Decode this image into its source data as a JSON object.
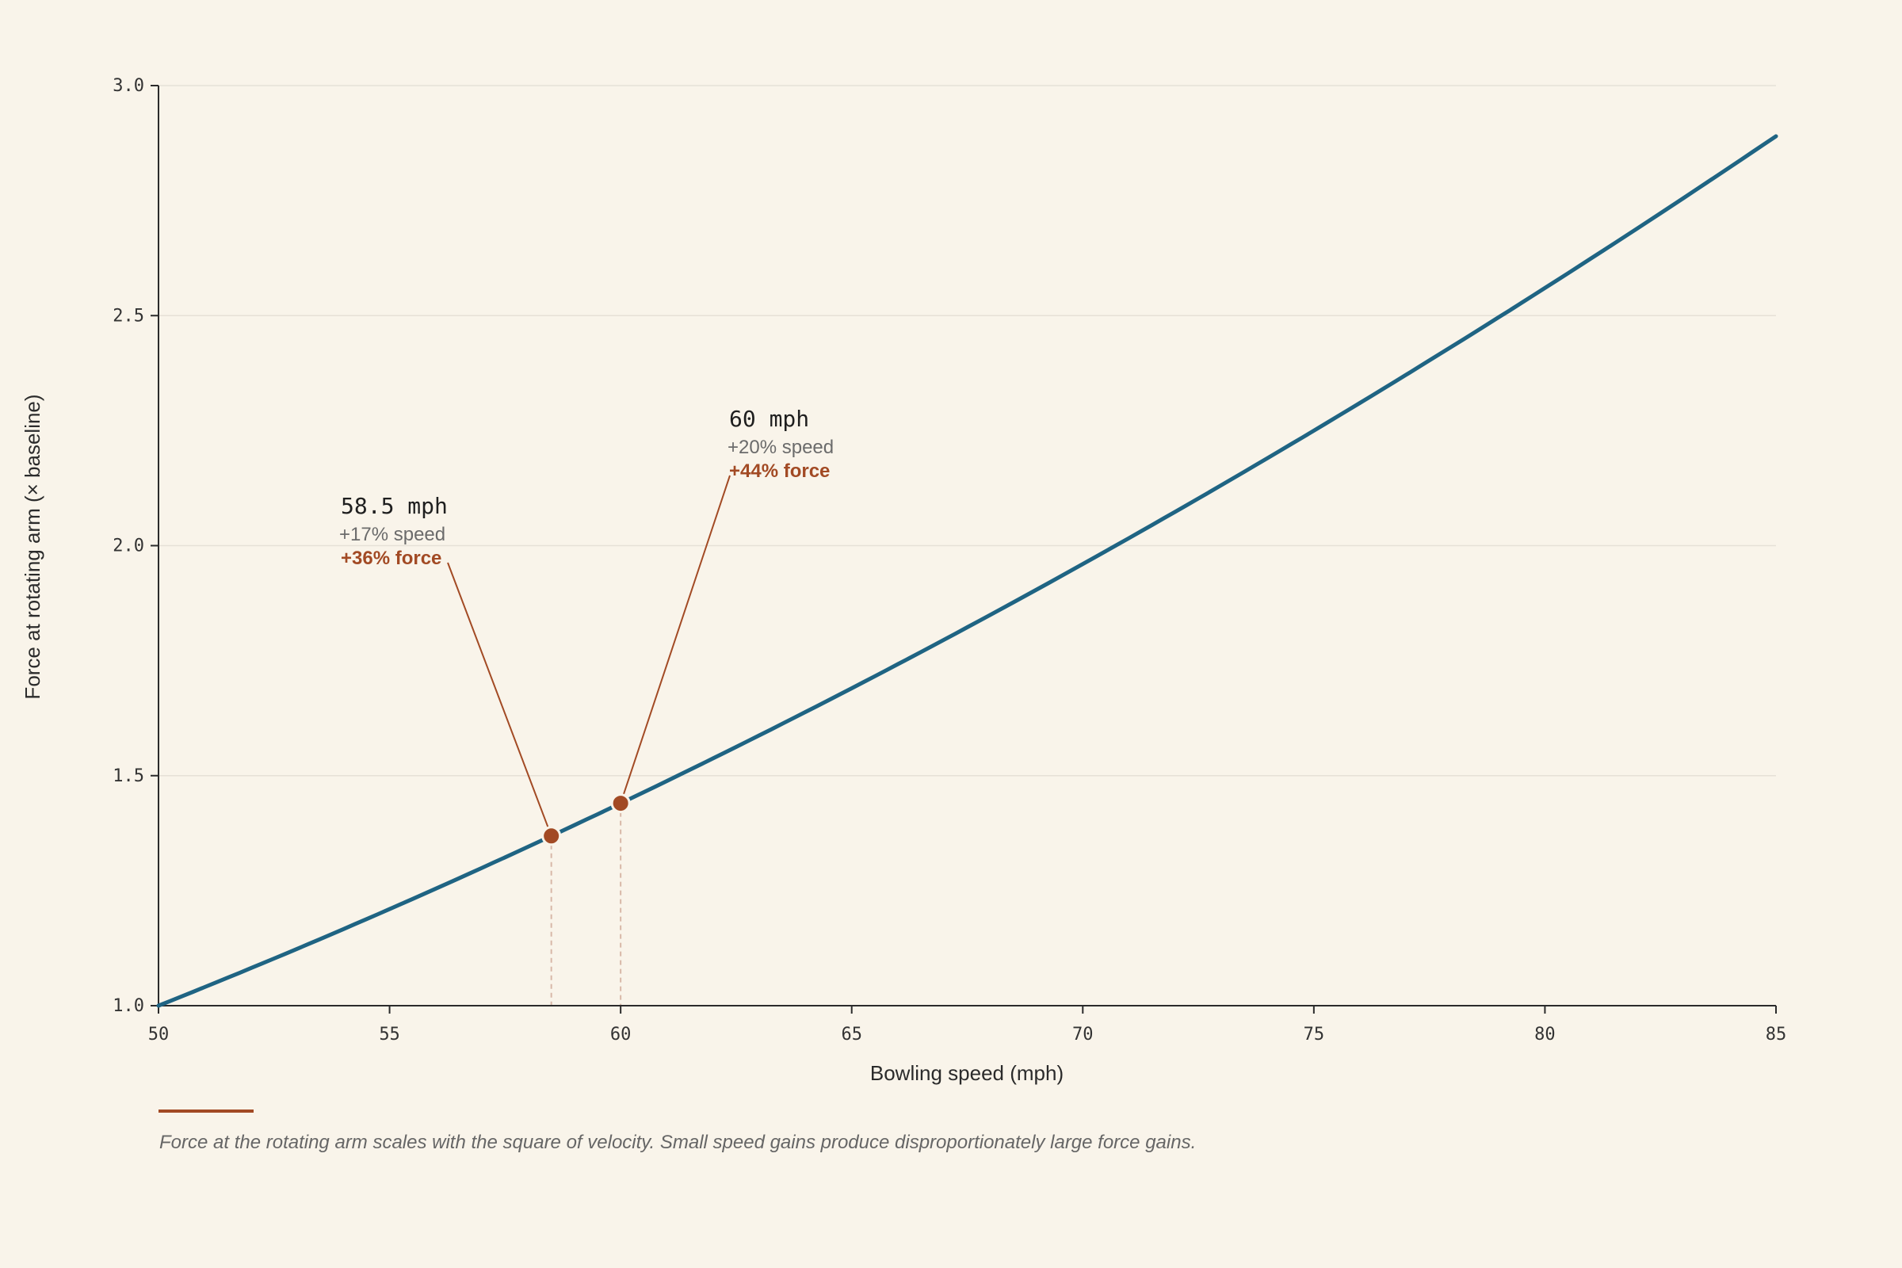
{
  "colors": {
    "background": "#f9f4ea",
    "line": "#1f6483",
    "accent": "#a24a24",
    "grid": "#e6e1d7",
    "axis": "#2b2b2b"
  },
  "chart_data": {
    "type": "line",
    "title": "",
    "xlabel": "Bowling speed (mph)",
    "ylabel": "Force at rotating arm (× baseline)",
    "xlim": [
      50,
      85
    ],
    "ylim": [
      1.0,
      3.0
    ],
    "x_ticks": [
      "50",
      "55",
      "60",
      "65",
      "70",
      "75",
      "80",
      "85"
    ],
    "y_ticks": [
      "1.0",
      "1.5",
      "2.0",
      "2.5",
      "3.0"
    ],
    "grid": "horizontal",
    "series": [
      {
        "x": [
          50,
          55,
          60,
          65,
          70,
          75,
          80,
          85
        ],
        "y": [
          1.0,
          1.21,
          1.44,
          1.69,
          1.96,
          2.25,
          2.56,
          2.89
        ]
      }
    ],
    "annotations": [
      {
        "x": 58.5,
        "y": 1.369,
        "title": "58.5 mph",
        "speed": "+17% speed",
        "force": "+36% force"
      },
      {
        "x": 60,
        "y": 1.44,
        "title": "60 mph",
        "speed": "+20% speed",
        "force": "+44% force"
      }
    ]
  },
  "caption": "Force at the rotating arm scales with the square of velocity. Small speed gains produce disproportionately large force gains."
}
